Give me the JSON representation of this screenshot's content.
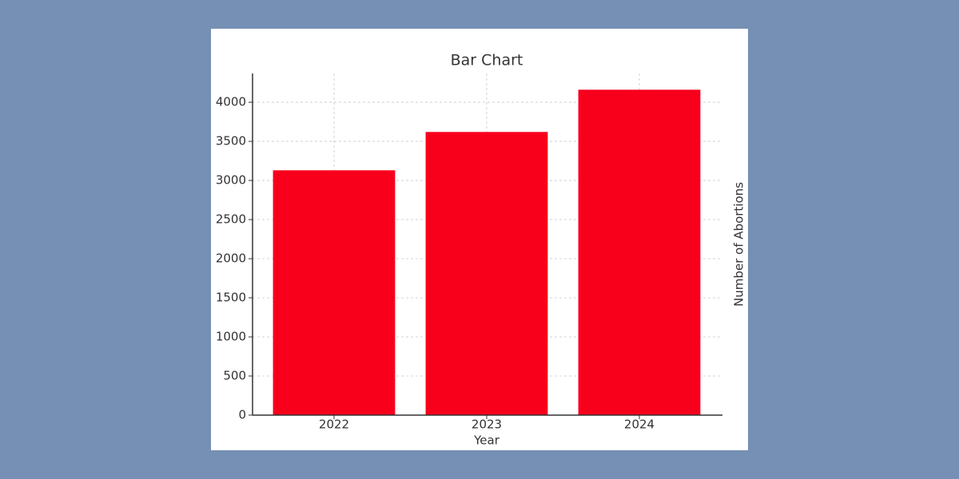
{
  "chart_data": {
    "type": "bar",
    "title": "Bar Chart",
    "x_label": "Year",
    "y_label": "Number of Abortions",
    "categories": [
      "2022",
      "2023",
      "2024"
    ],
    "values": [
      3130,
      3620,
      4160
    ],
    "color": "#f8001c",
    "ylim": [
      0,
      4368
    ],
    "yticks": [
      0,
      500,
      1000,
      1500,
      2000,
      2500,
      3000,
      3500,
      4000
    ],
    "grid": true
  }
}
